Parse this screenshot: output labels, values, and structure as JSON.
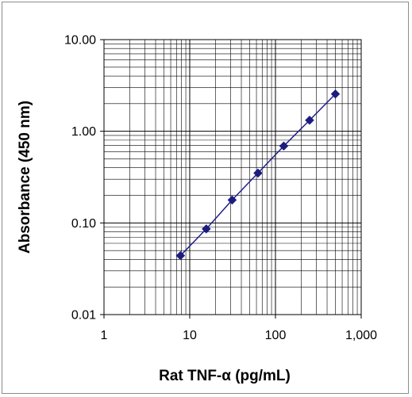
{
  "chart_data": {
    "type": "scatter",
    "xlabel": "Rat TNF-α (pg/mL)",
    "ylabel": "Absorbance (450 nm)",
    "xscale": "log",
    "yscale": "log",
    "xlim": [
      1,
      1000
    ],
    "ylim": [
      0.01,
      10
    ],
    "x_ticks": [
      1,
      10,
      100,
      1000
    ],
    "x_tick_labels": [
      "1",
      "10",
      "100",
      "1,000"
    ],
    "y_ticks": [
      0.01,
      0.1,
      1,
      10
    ],
    "y_tick_labels": [
      "0.01",
      "0.10",
      "1.00",
      "10.00"
    ],
    "grid": true,
    "line_color": "#1f1f8a",
    "marker_color": "#1c1c80",
    "marker": "diamond",
    "series": [
      {
        "x": [
          7.8,
          15.6,
          31.25,
          62.5,
          125,
          250,
          500
        ],
        "y": [
          0.044,
          0.086,
          0.178,
          0.35,
          0.69,
          1.32,
          2.55
        ]
      }
    ]
  }
}
